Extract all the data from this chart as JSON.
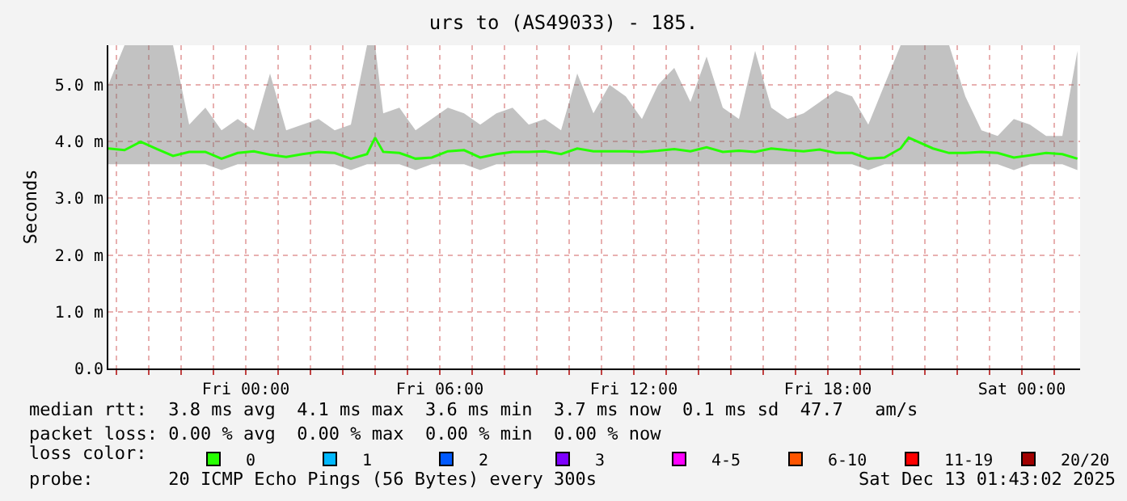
{
  "chart_data": {
    "type": "line",
    "title": "urs to (AS49033) - 185.",
    "ylabel": "Seconds",
    "legend_title": "loss color:",
    "x": [
      "2025-12-11T19:45",
      "2025-12-11T20:15",
      "2025-12-11T20:45",
      "2025-12-11T21:15",
      "2025-12-11T21:45",
      "2025-12-11T22:15",
      "2025-12-11T22:45",
      "2025-12-11T23:15",
      "2025-12-11T23:45",
      "2025-12-12T00:15",
      "2025-12-12T00:45",
      "2025-12-12T01:15",
      "2025-12-12T01:45",
      "2025-12-12T02:15",
      "2025-12-12T02:45",
      "2025-12-12T03:15",
      "2025-12-12T03:45",
      "2025-12-12T04:00",
      "2025-12-12T04:15",
      "2025-12-12T04:45",
      "2025-12-12T05:15",
      "2025-12-12T05:45",
      "2025-12-12T06:15",
      "2025-12-12T06:45",
      "2025-12-12T07:15",
      "2025-12-12T07:45",
      "2025-12-12T08:15",
      "2025-12-12T08:45",
      "2025-12-12T09:15",
      "2025-12-12T09:45",
      "2025-12-12T10:15",
      "2025-12-12T10:45",
      "2025-12-12T11:15",
      "2025-12-12T11:45",
      "2025-12-12T12:15",
      "2025-12-12T12:45",
      "2025-12-12T13:15",
      "2025-12-12T13:45",
      "2025-12-12T14:15",
      "2025-12-12T14:45",
      "2025-12-12T15:15",
      "2025-12-12T15:45",
      "2025-12-12T16:15",
      "2025-12-12T16:45",
      "2025-12-12T17:15",
      "2025-12-12T17:45",
      "2025-12-12T18:15",
      "2025-12-12T18:45",
      "2025-12-12T19:15",
      "2025-12-12T19:45",
      "2025-12-12T20:15",
      "2025-12-12T20:30",
      "2025-12-12T21:15",
      "2025-12-12T21:45",
      "2025-12-12T22:15",
      "2025-12-12T22:45",
      "2025-12-12T23:15",
      "2025-12-12T23:45",
      "2025-12-13T00:15",
      "2025-12-13T00:45",
      "2025-12-13T01:15",
      "2025-12-13T01:43"
    ],
    "series": [
      {
        "color": "#26ff00",
        "values": [
          3.88,
          3.85,
          4.0,
          3.87,
          3.75,
          3.82,
          3.82,
          3.7,
          3.8,
          3.83,
          3.77,
          3.73,
          3.78,
          3.82,
          3.8,
          3.7,
          3.78,
          4.07,
          3.82,
          3.8,
          3.7,
          3.72,
          3.83,
          3.85,
          3.72,
          3.78,
          3.82,
          3.82,
          3.83,
          3.78,
          3.88,
          3.83,
          3.83,
          3.83,
          3.82,
          3.84,
          3.87,
          3.83,
          3.9,
          3.82,
          3.84,
          3.82,
          3.88,
          3.85,
          3.83,
          3.86,
          3.8,
          3.8,
          3.7,
          3.72,
          3.88,
          4.07,
          3.88,
          3.8,
          3.8,
          3.82,
          3.8,
          3.72,
          3.76,
          3.8,
          3.78,
          3.7
        ],
        "lower": [
          3.6,
          3.6,
          3.6,
          3.6,
          3.6,
          3.6,
          3.6,
          3.5,
          3.6,
          3.6,
          3.6,
          3.6,
          3.6,
          3.6,
          3.6,
          3.5,
          3.6,
          3.6,
          3.6,
          3.6,
          3.5,
          3.6,
          3.6,
          3.6,
          3.5,
          3.6,
          3.6,
          3.6,
          3.6,
          3.6,
          3.6,
          3.6,
          3.6,
          3.6,
          3.6,
          3.6,
          3.6,
          3.6,
          3.6,
          3.6,
          3.6,
          3.6,
          3.6,
          3.6,
          3.6,
          3.6,
          3.6,
          3.6,
          3.5,
          3.6,
          3.6,
          3.6,
          3.6,
          3.6,
          3.6,
          3.6,
          3.6,
          3.5,
          3.6,
          3.6,
          3.6,
          3.5
        ],
        "upper": [
          5.0,
          5.7,
          5.7,
          5.7,
          5.7,
          4.3,
          4.6,
          4.2,
          4.4,
          4.2,
          5.2,
          4.2,
          4.3,
          4.4,
          4.2,
          4.3,
          5.7,
          5.7,
          4.5,
          4.6,
          4.2,
          4.4,
          4.6,
          4.5,
          4.3,
          4.5,
          4.6,
          4.3,
          4.4,
          4.2,
          5.2,
          4.5,
          5.0,
          4.8,
          4.4,
          5.0,
          5.3,
          4.7,
          5.5,
          4.6,
          4.4,
          5.6,
          4.6,
          4.4,
          4.5,
          4.7,
          4.9,
          4.8,
          4.3,
          5.0,
          5.7,
          5.7,
          5.7,
          5.7,
          4.8,
          4.2,
          4.1,
          4.4,
          4.3,
          4.1,
          4.1,
          5.6
        ]
      },
      {
        "name": "0",
        "type": "scatter",
        "color": "#26ff00",
        "values": [
          null,
          null,
          null,
          null,
          null,
          null,
          null,
          null,
          null,
          null,
          null,
          null,
          null,
          null,
          null,
          null,
          null,
          null,
          null,
          null,
          null,
          null,
          null,
          null,
          null,
          null,
          null,
          null,
          null,
          null,
          null,
          null,
          null,
          null,
          null,
          null,
          null,
          null,
          null,
          null,
          null,
          null,
          null,
          null,
          null,
          null,
          null,
          null,
          null,
          null,
          null,
          null,
          null,
          null,
          null,
          null,
          null,
          null,
          null,
          null,
          null,
          null
        ]
      },
      {
        "name": "1",
        "type": "scatter",
        "color": "#00b8ff",
        "values": [
          null,
          null,
          null,
          null,
          null,
          null,
          null,
          null,
          null,
          null,
          null,
          null,
          null,
          null,
          null,
          null,
          null,
          null,
          null,
          null,
          null,
          null,
          null,
          null,
          null,
          null,
          null,
          null,
          null,
          null,
          null,
          null,
          null,
          null,
          null,
          null,
          null,
          null,
          null,
          null,
          null,
          null,
          null,
          null,
          null,
          null,
          null,
          null,
          null,
          null,
          null,
          null,
          null,
          null,
          null,
          null,
          null,
          null,
          null,
          null,
          null,
          null
        ]
      },
      {
        "name": "2",
        "type": "scatter",
        "color": "#0059ff",
        "values": [
          null,
          null,
          null,
          null,
          null,
          null,
          null,
          null,
          null,
          null,
          null,
          null,
          null,
          null,
          null,
          null,
          null,
          null,
          null,
          null,
          null,
          null,
          null,
          null,
          null,
          null,
          null,
          null,
          null,
          null,
          null,
          null,
          null,
          null,
          null,
          null,
          null,
          null,
          null,
          null,
          null,
          null,
          null,
          null,
          null,
          null,
          null,
          null,
          null,
          null,
          null,
          null,
          null,
          null,
          null,
          null,
          null,
          null,
          null,
          null,
          null,
          null
        ]
      },
      {
        "name": "3",
        "type": "scatter",
        "color": "#7e00ff",
        "values": [
          null,
          null,
          null,
          null,
          null,
          null,
          null,
          null,
          null,
          null,
          null,
          null,
          null,
          null,
          null,
          null,
          null,
          null,
          null,
          null,
          null,
          null,
          null,
          null,
          null,
          null,
          null,
          null,
          null,
          null,
          null,
          null,
          null,
          null,
          null,
          null,
          null,
          null,
          null,
          null,
          null,
          null,
          null,
          null,
          null,
          null,
          null,
          null,
          null,
          null,
          null,
          null,
          null,
          null,
          null,
          null,
          null,
          null,
          null,
          null,
          null,
          null
        ]
      },
      {
        "name": "4-5",
        "type": "scatter",
        "color": "#ff00ff",
        "values": [
          null,
          null,
          null,
          null,
          null,
          null,
          null,
          null,
          null,
          null,
          null,
          null,
          null,
          null,
          null,
          null,
          null,
          null,
          null,
          null,
          null,
          null,
          null,
          null,
          null,
          null,
          null,
          null,
          null,
          null,
          null,
          null,
          null,
          null,
          null,
          null,
          null,
          null,
          null,
          null,
          null,
          null,
          null,
          null,
          null,
          null,
          null,
          null,
          null,
          null,
          null,
          null,
          null,
          null,
          null,
          null,
          null,
          null,
          null,
          null,
          null,
          null
        ]
      },
      {
        "name": "6-10",
        "type": "scatter",
        "color": "#ff5500",
        "values": [
          null,
          null,
          null,
          null,
          null,
          null,
          null,
          null,
          null,
          null,
          null,
          null,
          null,
          null,
          null,
          null,
          null,
          null,
          null,
          null,
          null,
          null,
          null,
          null,
          null,
          null,
          null,
          null,
          null,
          null,
          null,
          null,
          null,
          null,
          null,
          null,
          null,
          null,
          null,
          null,
          null,
          null,
          null,
          null,
          null,
          null,
          null,
          null,
          null,
          null,
          null,
          null,
          null,
          null,
          null,
          null,
          null,
          null,
          null,
          null,
          null,
          null
        ]
      },
      {
        "name": "11-19",
        "type": "scatter",
        "color": "#ff0000",
        "values": [
          null,
          null,
          null,
          null,
          null,
          null,
          null,
          null,
          null,
          null,
          null,
          null,
          null,
          null,
          null,
          null,
          null,
          null,
          null,
          null,
          null,
          null,
          null,
          null,
          null,
          null,
          null,
          null,
          null,
          null,
          null,
          null,
          null,
          null,
          null,
          null,
          null,
          null,
          null,
          null,
          null,
          null,
          null,
          null,
          null,
          null,
          null,
          null,
          null,
          null,
          null,
          null,
          null,
          null,
          null,
          null,
          null,
          null,
          null,
          null,
          null,
          null
        ]
      },
      {
        "name": "20/20",
        "type": "scatter",
        "color": "#a10000",
        "values": [
          null,
          null,
          null,
          null,
          null,
          null,
          null,
          null,
          null,
          null,
          null,
          null,
          null,
          null,
          null,
          null,
          null,
          null,
          null,
          null,
          null,
          null,
          null,
          null,
          null,
          null,
          null,
          null,
          null,
          null,
          null,
          null,
          null,
          null,
          null,
          null,
          null,
          null,
          null,
          null,
          null,
          null,
          null,
          null,
          null,
          null,
          null,
          null,
          null,
          null,
          null,
          null,
          null,
          null,
          null,
          null,
          null,
          null,
          null,
          null,
          null,
          null
        ]
      }
    ],
    "xlim": [
      "2025-12-11T19:45",
      "2025-12-13T01:48"
    ],
    "xticks": [
      {
        "value": "2025-12-11T20:00",
        "label": null
      },
      {
        "value": "2025-12-11T21:00",
        "label": null
      },
      {
        "value": "2025-12-11T22:00",
        "label": null
      },
      {
        "value": "2025-12-11T23:00",
        "label": null
      },
      {
        "value": "2025-12-12T00:00",
        "label": "Fri 00:00"
      },
      {
        "value": "2025-12-12T01:00",
        "label": null
      },
      {
        "value": "2025-12-12T02:00",
        "label": null
      },
      {
        "value": "2025-12-12T03:00",
        "label": null
      },
      {
        "value": "2025-12-12T04:00",
        "label": null
      },
      {
        "value": "2025-12-12T05:00",
        "label": null
      },
      {
        "value": "2025-12-12T06:00",
        "label": "Fri 06:00"
      },
      {
        "value": "2025-12-12T07:00",
        "label": null
      },
      {
        "value": "2025-12-12T08:00",
        "label": null
      },
      {
        "value": "2025-12-12T09:00",
        "label": null
      },
      {
        "value": "2025-12-12T10:00",
        "label": null
      },
      {
        "value": "2025-12-12T11:00",
        "label": null
      },
      {
        "value": "2025-12-12T12:00",
        "label": "Fri 12:00"
      },
      {
        "value": "2025-12-12T13:00",
        "label": null
      },
      {
        "value": "2025-12-12T14:00",
        "label": null
      },
      {
        "value": "2025-12-12T15:00",
        "label": null
      },
      {
        "value": "2025-12-12T16:00",
        "label": null
      },
      {
        "value": "2025-12-12T17:00",
        "label": null
      },
      {
        "value": "2025-12-12T18:00",
        "label": "Fri 18:00"
      },
      {
        "value": "2025-12-12T19:00",
        "label": null
      },
      {
        "value": "2025-12-12T20:00",
        "label": null
      },
      {
        "value": "2025-12-12T21:00",
        "label": null
      },
      {
        "value": "2025-12-12T22:00",
        "label": null
      },
      {
        "value": "2025-12-12T23:00",
        "label": null
      },
      {
        "value": "2025-12-13T00:00",
        "label": "Sat 00:00"
      },
      {
        "value": "2025-12-13T01:00",
        "label": null
      }
    ],
    "ylim": [
      0,
      5.7
    ],
    "yticks": [
      {
        "value": 0,
        "label": "0.0"
      },
      {
        "value": 1,
        "label": "1.0 m"
      },
      {
        "value": 2,
        "label": "2.0 m"
      },
      {
        "value": 3,
        "label": "3.0 m"
      },
      {
        "value": 4,
        "label": "4.0 m"
      },
      {
        "value": 5,
        "label": "5.0 m"
      }
    ],
    "grid": true,
    "legend": "bottom",
    "line_style": "solid",
    "marker": "none",
    "annotations": [
      "median rtt:  3.8 ms avg  4.1 ms max  3.6 ms min  3.7 ms now  0.1 ms sd  47.7   am/s",
      "packet loss: 0.00 % avg  0.00 % max  0.00 % min  0.00 % now",
      "probe:       20 ICMP Echo Pings (56 Bytes) every 300s",
      "Sat Dec 13 01:43:02 2025"
    ]
  }
}
